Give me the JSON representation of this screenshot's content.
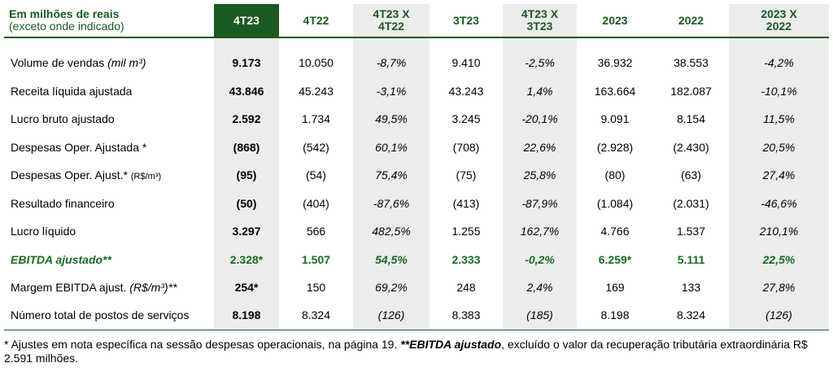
{
  "header": {
    "title": "Em milhões de reais",
    "subtitle": "(exceto onde indicado)",
    "columns": [
      "4T23",
      "4T22",
      "4T23 X\n4T22",
      "3T23",
      "4T23 X\n3T23",
      "2023",
      "2022",
      "2023 X\n2022"
    ]
  },
  "rows": [
    {
      "label": "Volume de vendas ",
      "label_italic": "(mil m³)",
      "values": [
        "9.173",
        "10.050",
        "-8,7%",
        "9.410",
        "-2,5%",
        "36.932",
        "38.553",
        "-4,2%"
      ]
    },
    {
      "label": "Receita líquida ajustada",
      "values": [
        "43.846",
        "45.243",
        "-3,1%",
        "43.243",
        "1,4%",
        "163.664",
        "182.087",
        "-10,1%"
      ]
    },
    {
      "label": "Lucro bruto ajustado",
      "values": [
        "2.592",
        "1.734",
        "49,5%",
        "3.245",
        "-20,1%",
        "9.091",
        "8.154",
        "11,5%"
      ]
    },
    {
      "label": "Despesas Oper. Ajustada *",
      "values": [
        "(868)",
        "(542)",
        "60,1%",
        "(708)",
        "22,6%",
        "(2.928)",
        "(2.430)",
        "20,5%"
      ]
    },
    {
      "label": "Despesas Oper. Ajust.* ",
      "label_small": "(R$/m³)",
      "values": [
        "(95)",
        "(54)",
        "75,4%",
        "(75)",
        "25,8%",
        "(80)",
        "(63)",
        "27,4%"
      ]
    },
    {
      "label": "Resultado financeiro",
      "values": [
        "(50)",
        "(404)",
        "-87,6%",
        "(413)",
        "-87,9%",
        "(1.084)",
        "(2.031)",
        "-46,6%"
      ]
    },
    {
      "label": "Lucro líquido",
      "values": [
        "3.297",
        "566",
        "482,5%",
        "1.255",
        "162,7%",
        "4.766",
        "1.537",
        "210,1%"
      ]
    },
    {
      "label": "EBITDA ajustado**",
      "values": [
        "2.328*",
        "1.507",
        "54,5%",
        "2.333",
        "-0,2%",
        "6.259*",
        "5.111",
        "22,5%"
      ]
    },
    {
      "label": "Margem EBITDA ajust. ",
      "label_italic": "(R$/m³)**",
      "values": [
        "254*",
        "150",
        "69,2%",
        "248",
        "2,4%",
        "169",
        "133",
        "27,8%"
      ]
    },
    {
      "label": "Número total de postos de serviços",
      "values": [
        "8.198",
        "8.324",
        "(126)",
        "8.383",
        "(185)",
        "8.198",
        "8.324",
        "(126)"
      ]
    }
  ],
  "footnote": {
    "part1": "* Ajustes em nota específica na sessão despesas operacionais, na página 19. ",
    "part2": "**EBITDA ajustado",
    "part3": ", excluído o valor da recuperação tributária extraordinária R$ 2.591 milhões."
  },
  "colors": {
    "green_dark": "#1a5a20",
    "green_text": "#1a6a28",
    "shade": "#ececec"
  }
}
